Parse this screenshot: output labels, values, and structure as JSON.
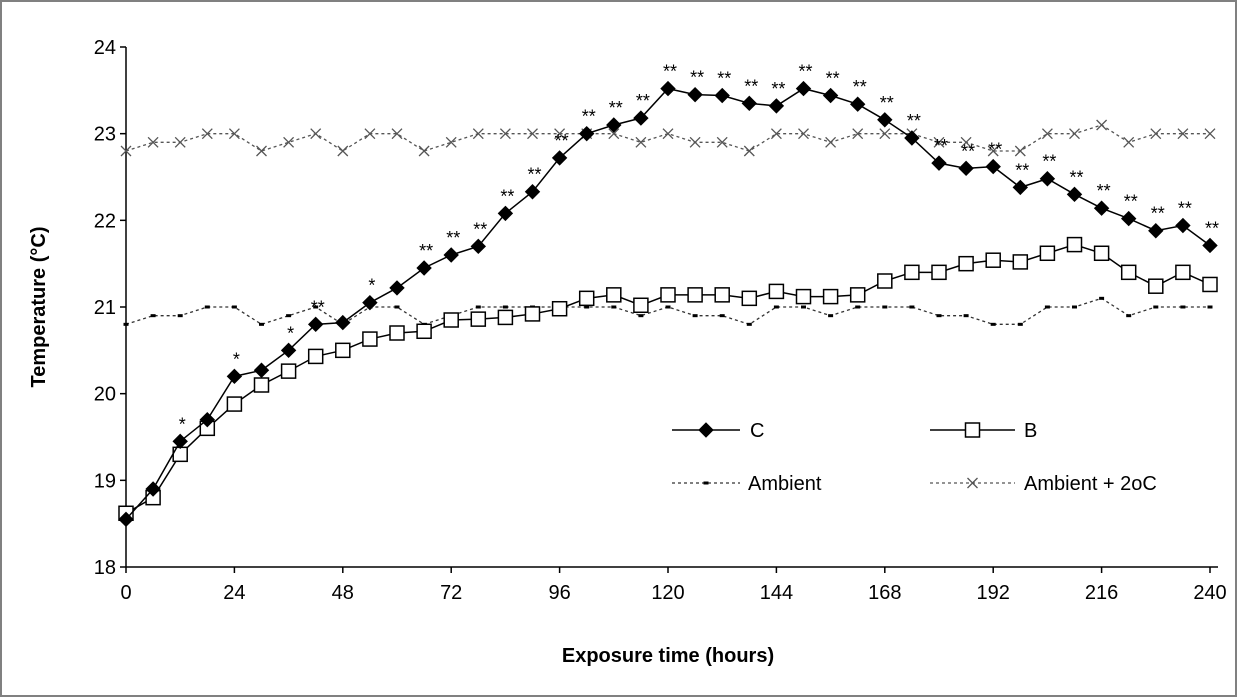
{
  "chart_data": {
    "type": "line",
    "xlabel": "Exposure time (hours)",
    "ylabel": "Temperature (°C)",
    "xlim": [
      0,
      240
    ],
    "ylim": [
      18,
      24
    ],
    "xticks": [
      0,
      24,
      48,
      72,
      96,
      120,
      144,
      168,
      192,
      216,
      240
    ],
    "yticks": [
      18,
      19,
      20,
      21,
      22,
      23,
      24
    ],
    "x": [
      0,
      6,
      12,
      18,
      24,
      30,
      36,
      42,
      48,
      54,
      60,
      66,
      72,
      78,
      84,
      90,
      96,
      102,
      108,
      114,
      120,
      126,
      132,
      138,
      144,
      150,
      156,
      162,
      168,
      174,
      180,
      186,
      192,
      198,
      204,
      210,
      216,
      222,
      228,
      234,
      240
    ],
    "series": [
      {
        "name": "C",
        "marker": "filled-diamond",
        "values": [
          18.55,
          18.9,
          19.45,
          19.7,
          20.2,
          20.27,
          20.5,
          20.8,
          20.82,
          21.05,
          21.22,
          21.45,
          21.6,
          21.7,
          22.08,
          22.33,
          22.72,
          23.0,
          23.1,
          23.18,
          23.52,
          23.45,
          23.44,
          23.35,
          23.32,
          23.52,
          23.44,
          23.34,
          23.16,
          22.95,
          22.66,
          22.6,
          22.62,
          22.38,
          22.48,
          22.3,
          22.14,
          22.02,
          21.88,
          21.94,
          21.71
        ],
        "significance": [
          "",
          "",
          "*",
          "",
          "*",
          "",
          "*",
          "**",
          "",
          "*",
          "",
          "**",
          "**",
          "**",
          "**",
          "**",
          "**",
          "**",
          "**",
          "**",
          "**",
          "**",
          "**",
          "**",
          "**",
          "**",
          "**",
          "**",
          "**",
          "**",
          "**",
          "**",
          "**",
          "**",
          "**",
          "**",
          "**",
          "**",
          "**",
          "**",
          "**"
        ]
      },
      {
        "name": "B",
        "marker": "open-square",
        "values": [
          18.62,
          18.8,
          19.3,
          19.6,
          19.88,
          20.1,
          20.26,
          20.43,
          20.5,
          20.63,
          20.7,
          20.72,
          20.85,
          20.86,
          20.88,
          20.92,
          20.98,
          21.1,
          21.14,
          21.02,
          21.14,
          21.14,
          21.14,
          21.1,
          21.18,
          21.12,
          21.12,
          21.14,
          21.3,
          21.4,
          21.4,
          21.5,
          21.54,
          21.52,
          21.62,
          21.72,
          21.62,
          21.4,
          21.24,
          21.4,
          21.26
        ]
      },
      {
        "name": "Ambient",
        "marker": "small-dash",
        "values": [
          20.8,
          20.9,
          20.9,
          21.0,
          21.0,
          20.8,
          20.9,
          21.0,
          20.8,
          21.0,
          21.0,
          20.8,
          20.9,
          21.0,
          21.0,
          21.0,
          21.0,
          21.0,
          21.0,
          20.9,
          21.0,
          20.9,
          20.9,
          20.8,
          21.0,
          21.0,
          20.9,
          21.0,
          21.0,
          21.0,
          20.9,
          20.9,
          20.8,
          20.8,
          21.0,
          21.0,
          21.1,
          20.9,
          21.0,
          21.0,
          21.0
        ]
      },
      {
        "name": "Ambient + 2oC",
        "marker": "cross",
        "values": [
          22.8,
          22.9,
          22.9,
          23.0,
          23.0,
          22.8,
          22.9,
          23.0,
          22.8,
          23.0,
          23.0,
          22.8,
          22.9,
          23.0,
          23.0,
          23.0,
          23.0,
          23.0,
          23.0,
          22.9,
          23.0,
          22.9,
          22.9,
          22.8,
          23.0,
          23.0,
          22.9,
          23.0,
          23.0,
          23.0,
          22.9,
          22.9,
          22.8,
          22.8,
          23.0,
          23.0,
          23.1,
          22.9,
          23.0,
          23.0,
          23.0
        ]
      }
    ],
    "legend": {
      "placement": "inside-lower-right",
      "entries": [
        "C",
        "B",
        "Ambient",
        "Ambient + 2oC"
      ]
    },
    "grid": false
  }
}
